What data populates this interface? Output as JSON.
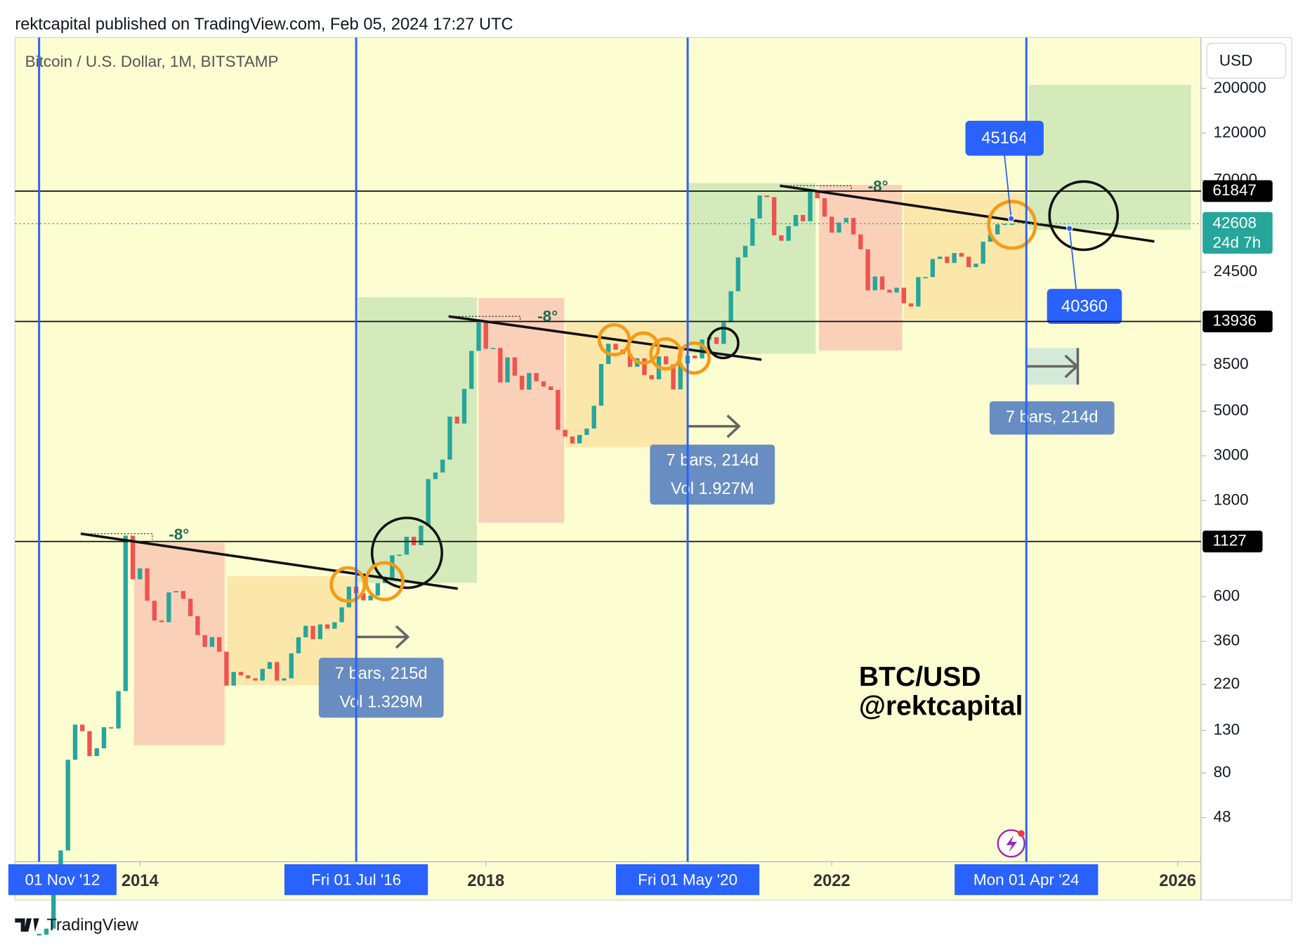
{
  "header": {
    "publisher": "rektcapital published on TradingView.com, Feb 05, 2024 17:27 UTC",
    "symbol": "Bitcoin / U.S. Dollar, 1M, BITSTAMP",
    "currency": "USD",
    "footer": "TradingView"
  },
  "chart_data": {
    "type": "candlestick",
    "log_scale": true,
    "up_color": "#26a69a",
    "down_color": "#ef5350",
    "x": [
      "2012-11",
      "2012-12",
      "2013-01",
      "2013-02",
      "2013-03",
      "2013-04",
      "2013-05",
      "2013-06",
      "2013-07",
      "2013-08",
      "2013-09",
      "2013-10",
      "2013-11",
      "2013-12",
      "2014-01",
      "2014-02",
      "2014-03",
      "2014-04",
      "2014-05",
      "2014-06",
      "2014-07",
      "2014-08",
      "2014-09",
      "2014-10",
      "2014-11",
      "2014-12",
      "2015-01",
      "2015-02",
      "2015-03",
      "2015-04",
      "2015-05",
      "2015-06",
      "2015-07",
      "2015-08",
      "2015-09",
      "2015-10",
      "2015-11",
      "2015-12",
      "2016-01",
      "2016-02",
      "2016-03",
      "2016-04",
      "2016-05",
      "2016-06",
      "2016-07",
      "2016-08",
      "2016-09",
      "2016-10",
      "2016-11",
      "2016-12",
      "2017-01",
      "2017-02",
      "2017-03",
      "2017-04",
      "2017-05",
      "2017-06",
      "2017-07",
      "2017-08",
      "2017-09",
      "2017-10",
      "2017-11",
      "2017-12",
      "2018-01",
      "2018-02",
      "2018-03",
      "2018-04",
      "2018-05",
      "2018-06",
      "2018-07",
      "2018-08",
      "2018-09",
      "2018-10",
      "2018-11",
      "2018-12",
      "2019-01",
      "2019-02",
      "2019-03",
      "2019-04",
      "2019-05",
      "2019-06",
      "2019-07",
      "2019-08",
      "2019-09",
      "2019-10",
      "2019-11",
      "2019-12",
      "2020-01",
      "2020-02",
      "2020-03",
      "2020-04",
      "2020-05",
      "2020-06",
      "2020-07",
      "2020-08",
      "2020-09",
      "2020-10",
      "2020-11",
      "2020-12",
      "2021-01",
      "2021-02",
      "2021-03",
      "2021-04",
      "2021-05",
      "2021-06",
      "2021-07",
      "2021-08",
      "2021-09",
      "2021-10",
      "2021-11",
      "2021-12",
      "2022-01",
      "2022-02",
      "2022-03",
      "2022-04",
      "2022-05",
      "2022-06",
      "2022-07",
      "2022-08",
      "2022-09",
      "2022-10",
      "2022-11",
      "2022-12",
      "2023-01",
      "2023-02",
      "2023-03",
      "2023-04",
      "2023-05",
      "2023-06",
      "2023-07",
      "2023-08",
      "2023-09",
      "2023-10",
      "2023-11",
      "2023-12",
      "2024-01",
      "2024-02"
    ],
    "values": [
      12.6,
      13.5,
      20,
      33,
      93,
      139,
      129,
      97,
      106,
      135,
      133,
      204,
      1205,
      732,
      829,
      573,
      457,
      448,
      630,
      640,
      586,
      480,
      387,
      338,
      378,
      320,
      217,
      254,
      244,
      236,
      230,
      263,
      284,
      230,
      236,
      314,
      377,
      430,
      369,
      437,
      416,
      448,
      531,
      673,
      624,
      575,
      608,
      700,
      742,
      963,
      970,
      1190,
      1080,
      1350,
      2300,
      2480,
      2875,
      4700,
      4340,
      6450,
      9950,
      13800,
      10200,
      10300,
      6940,
      9240,
      7500,
      6390,
      7730,
      7030,
      6630,
      6370,
      4040,
      3740,
      3460,
      3810,
      4100,
      5320,
      8570,
      10800,
      10100,
      9600,
      8300,
      9150,
      7550,
      7200,
      9350,
      8540,
      6410,
      8620,
      9450,
      9140,
      11340,
      11650,
      10780,
      13800,
      19700,
      28990,
      33100,
      45200,
      58800,
      57700,
      37300,
      35040,
      41460,
      47100,
      43800,
      61300,
      57000,
      46200,
      38500,
      43200,
      45500,
      37700,
      31800,
      19900,
      23300,
      20050,
      19400,
      20500,
      17150,
      16540,
      23130,
      23150,
      28470,
      29250,
      27200,
      30480,
      29230,
      25940,
      26970,
      34660,
      37720,
      42280,
      42580,
      42608
    ],
    "xlim": [
      "2012-08",
      "2026-04"
    ],
    "xticks": [
      {
        "value": "2014-01",
        "label": "2014"
      },
      {
        "value": "2018-01",
        "label": "2018"
      },
      {
        "value": "2022-01",
        "label": "2022"
      },
      {
        "value": "2026-01",
        "label": "2026"
      }
    ],
    "ylim": [
      29,
      358000
    ],
    "yticks": [
      48,
      80,
      130,
      220,
      360,
      600,
      1800,
      3000,
      5000,
      8500,
      24500,
      70000,
      120000,
      200000
    ],
    "cycle_lines": [
      {
        "value": "2012-11",
        "label": "01 Nov '12"
      },
      {
        "value": "2016-07",
        "label": "Fri 01 Jul '16"
      },
      {
        "value": "2020-05",
        "label": "Fri 01 May '20"
      },
      {
        "value": "2024-04",
        "label": "Mon 01 Apr '24"
      }
    ],
    "price_lines": [
      61847,
      13936,
      1127
    ],
    "last_price": {
      "value": 42608,
      "countdown": "24d 7h"
    },
    "price_callouts": [
      45164,
      40360
    ],
    "bar_ranges": [
      {
        "bars": "7 bars, 215d",
        "volume": "Vol 1.329M"
      },
      {
        "bars": "7 bars, 214d",
        "volume": "Vol 1.927M"
      },
      {
        "bars": "7 bars, 214d"
      }
    ],
    "angle_labels": [
      "-8°",
      "-8°",
      "-8°"
    ],
    "watermark": [
      "BTC/USD",
      "@rektcapital"
    ]
  }
}
